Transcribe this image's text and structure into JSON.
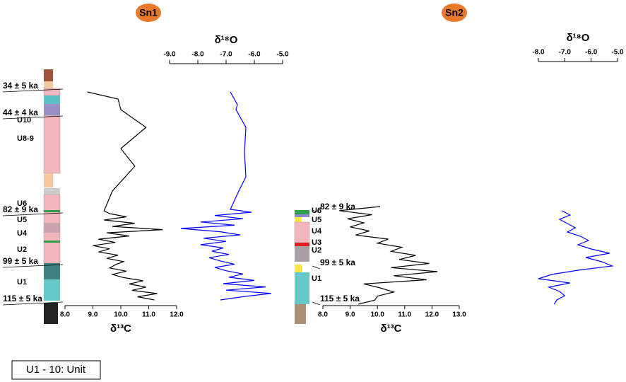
{
  "legend_note": "U1 - 10: Unit",
  "chart_data": [
    {
      "type": "profile",
      "title": "Sn1",
      "units": [
        "U10",
        "U8-9",
        "U6",
        "U5",
        "U4",
        "U2",
        "U1"
      ],
      "ages": [
        "34 ± 5 ka",
        "44 ± 4 ka",
        "82 ± 9 ka",
        "99 ± 5 ka",
        "115 ± 5 ka"
      ],
      "carbon": {
        "xlabel": "δ¹³C",
        "color": "#000000",
        "xlim": [
          8,
          12
        ],
        "xticks": [
          {
            "value": 8,
            "label": "8.0"
          },
          {
            "value": 9,
            "label": "9.0"
          },
          {
            "value": 10,
            "label": "10.0"
          },
          {
            "value": 11,
            "label": "11.0"
          },
          {
            "value": 12,
            "label": "12.0"
          }
        ],
        "values": [
          8.8,
          9.9,
          10.0,
          10.9,
          10.0,
          10.5,
          9.7,
          9.4,
          9.6,
          10.2,
          9.4,
          10.5,
          9.7,
          11.5,
          9.5,
          10.3,
          9.2,
          9.8,
          9.0,
          9.6,
          9.2,
          9.9,
          9.5,
          10.1,
          9.8,
          9.6,
          10.2,
          9.7,
          10.1,
          10.8,
          10.3,
          10.9,
          10.4,
          11.3,
          10.6,
          11.2
        ]
      },
      "oxygen": {
        "xlabel": "δ¹⁸O",
        "color": "#0000ff",
        "xlim": [
          -9,
          -5
        ],
        "xticks": [
          {
            "value": -9,
            "label": "-9.0"
          },
          {
            "value": -8,
            "label": "-8.0"
          },
          {
            "value": -7,
            "label": "-7.0"
          },
          {
            "value": -6,
            "label": "-6.0"
          },
          {
            "value": -5,
            "label": "-5.0"
          }
        ],
        "values": [
          -6.85,
          -6.6,
          -6.65,
          -6.3,
          -6.35,
          -6.3,
          -6.55,
          -6.85,
          -6.1,
          -7.4,
          -6.4,
          -7.9,
          -6.7,
          -8.6,
          -7.2,
          -6.5,
          -7.8,
          -7.0,
          -7.9,
          -7.1,
          -7.5,
          -6.9,
          -7.6,
          -7.2,
          -6.7,
          -7.4,
          -7.0,
          -6.4,
          -6.9,
          -6.0,
          -7.1,
          -5.6,
          -7.0,
          -5.4,
          -6.4,
          -7.2
        ]
      }
    },
    {
      "type": "profile",
      "title": "Sn2",
      "units": [
        "U6",
        "U5",
        "U4",
        "U3",
        "U2",
        "U1"
      ],
      "ages": [
        "82 ± 9 ka",
        "99 ± 5 ka",
        "115 ± 5 ka"
      ],
      "carbon": {
        "xlabel": "δ¹³C",
        "color": "#000000",
        "xlim": [
          8,
          13
        ],
        "xticks": [
          {
            "value": 8,
            "label": "8.0"
          },
          {
            "value": 9,
            "label": "9.0"
          },
          {
            "value": 10,
            "label": "10.0"
          },
          {
            "value": 11,
            "label": "11.0"
          },
          {
            "value": 12,
            "label": "12.0"
          },
          {
            "value": 13,
            "label": "13.0"
          }
        ],
        "values": [
          10.1,
          8.6,
          9.8,
          8.9,
          9.5,
          9.0,
          9.7,
          9.2,
          10.4,
          10.0,
          10.9,
          10.5,
          11.4,
          10.8,
          11.9,
          10.5,
          12.2,
          10.6,
          11.8,
          9.5,
          10.1,
          10.6,
          10.0,
          9.9,
          9.3
        ]
      },
      "oxygen": {
        "xlabel": "δ¹⁸O",
        "color": "#0000ff",
        "xlim": [
          -8,
          -5
        ],
        "xticks": [
          {
            "value": -8,
            "label": "-8.0"
          },
          {
            "value": -7,
            "label": "-7.0"
          },
          {
            "value": -6,
            "label": "-6.0"
          },
          {
            "value": -5,
            "label": "-5.0"
          }
        ],
        "values": [
          -7.1,
          -6.8,
          -7.2,
          -6.9,
          -6.6,
          -6.9,
          -6.4,
          -6.1,
          -6.5,
          -6.0,
          -5.3,
          -6.2,
          -5.6,
          -5.2,
          -6.5,
          -7.5,
          -8.0,
          -6.8,
          -7.6,
          -7.2,
          -7.0,
          -7.3,
          -7.4
        ]
      }
    }
  ]
}
